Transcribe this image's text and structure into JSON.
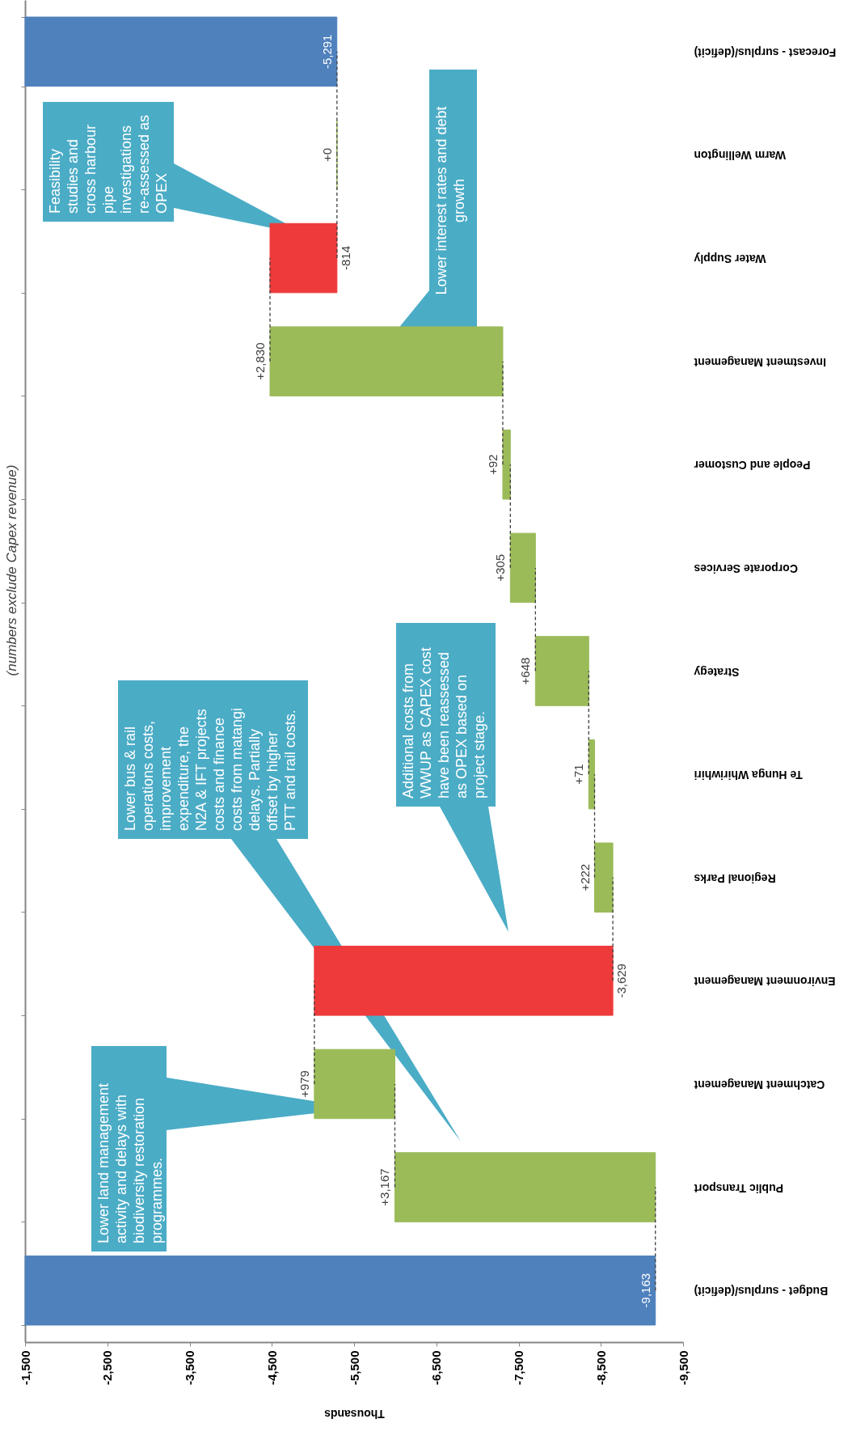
{
  "chart_data": {
    "type": "bar",
    "orientation": "horizontal",
    "subtitle": "(numbers exclude Capex revenue)",
    "xlabel": "Thousands",
    "categories": [
      "Forecast - surplus/(deficit)",
      "Warm Wellington",
      "Water Supply",
      "Investment Management",
      "People and Customer",
      "Corporate Services",
      "Strategy",
      "Te Hunga Whiriwhiri",
      "Regional Parks",
      "Environment Management",
      "Catchment Management",
      "Public Transport",
      "Budget - surplus/(deficit)"
    ],
    "values": [
      -5291,
      0,
      -814,
      2830,
      92,
      305,
      648,
      71,
      222,
      -3629,
      979,
      3167,
      -9163
    ],
    "base": [
      null,
      -5292,
      -4478,
      -7308,
      -7400,
      -7705,
      -8353,
      -8424,
      -8646,
      -5017,
      -5996,
      -9163,
      null
    ],
    "colors": [
      "#4f81bd",
      "#9bbb59",
      "#ee3a3b",
      "#9bbb59",
      "#9bbb59",
      "#9bbb59",
      "#9bbb59",
      "#9bbb59",
      "#9bbb59",
      "#ee3a3b",
      "#9bbb59",
      "#9bbb59",
      "#4f81bd"
    ],
    "value_labels": [
      "-5,291",
      "+0",
      "-814",
      "+2,830",
      "+92",
      "+305",
      "+648",
      "+71",
      "+222",
      "-3,629",
      "+979",
      "+3,167",
      "-9,163"
    ],
    "xlim": [
      -1500,
      -9500
    ],
    "xticks": [
      {
        "value": -1500,
        "label": "-1,500"
      },
      {
        "value": -2500,
        "label": "-2,500"
      },
      {
        "value": -3500,
        "label": "-3,500"
      },
      {
        "value": -4500,
        "label": "-4,500"
      },
      {
        "value": -5500,
        "label": "-5,500"
      },
      {
        "value": -6500,
        "label": "-6,500"
      },
      {
        "value": -7500,
        "label": "-7,500"
      },
      {
        "value": -8500,
        "label": "-8,500"
      },
      {
        "value": -9500,
        "label": "-9,500"
      }
    ],
    "annotations": [
      "Lower land management activity and delays with biodiversity restoration programmes.",
      "Lower bus & rail operations costs, improvement expenditure, the N2A & IFT projects costs and finance costs from matangi delays. Partially offset by higher PTT and rail costs.",
      "Additional costs from WWUP as CAPEX cost have been reassessed as OPEX based on project stage.",
      "Lower interest rates and debt growth",
      "Feasibility studies and cross harbour pipe investigations re-assessed as OPEX"
    ]
  }
}
